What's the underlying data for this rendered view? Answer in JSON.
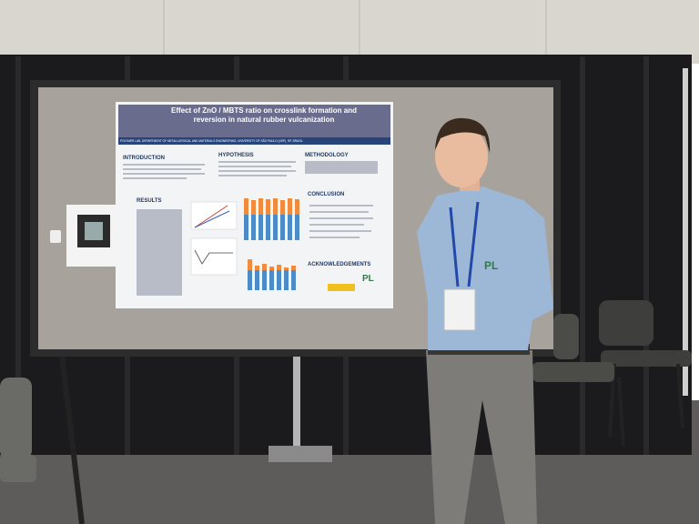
{
  "poster": {
    "title": "Effect of ZnO / MBTS ratio on crosslink formation and reversion in natural rubber vulcanization",
    "affiliation": "POLYMER LAB, DEPARTMENT OF METALLURGICAL AND MATERIALS ENGINEERING, UNIVERSITY OF SÃO PAULO (USP), SP, BRAZIL",
    "sections": [
      "INTRODUCTION",
      "HYPOTHESIS",
      "METHODOLOGY",
      "RESULTS",
      "CONCLUSION",
      "ACKNOWLEDGEMENTS"
    ],
    "logo": "PL"
  },
  "shirt_logo": "PL"
}
